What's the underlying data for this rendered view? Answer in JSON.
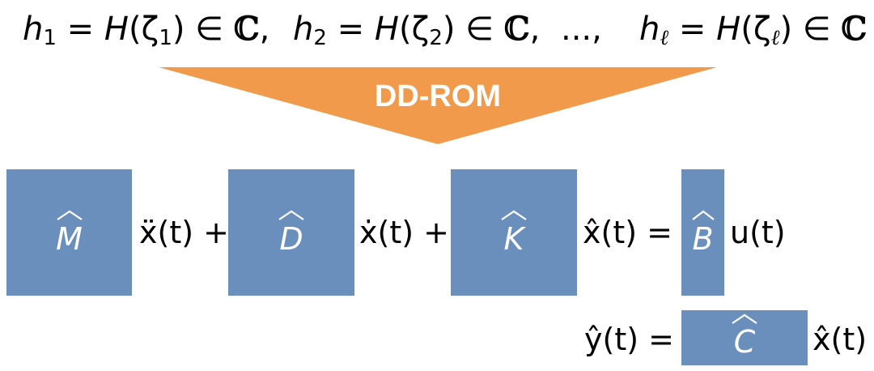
{
  "samples": [
    {
      "h": "h",
      "h_sub": "1",
      "op": " = ",
      "H": "H",
      "zeta": "(ζ",
      "z_sub": "1",
      "rest": ") ∈ ",
      "set": "ℂ",
      "sep": ","
    },
    {
      "h": "h",
      "h_sub": "2",
      "op": " = ",
      "H": "H",
      "zeta": "(ζ",
      "z_sub": "2",
      "rest": ") ∈ ",
      "set": "ℂ",
      "sep": ","
    },
    {
      "ellipsis": "...,"
    },
    {
      "h": "h",
      "h_sub": "ℓ",
      "op": " = ",
      "H": "H",
      "zeta": "(ζ",
      "z_sub": "ℓ",
      "rest": ") ∈ ",
      "set": "ℂ",
      "sep": ""
    }
  ],
  "arrow": {
    "label": "DD-ROM",
    "color": "#f19a4c"
  },
  "blocks": {
    "color": "#6a8fbd",
    "m": "M",
    "d": "D",
    "k": "K",
    "b": "B",
    "c": "C"
  },
  "equation1": {
    "term1": "ẍ(t) +",
    "term2": "ẋ(t) +",
    "term3": "x̂(t) =",
    "rhs": "u(t)"
  },
  "equation2": {
    "lhs": "ŷ(t) =",
    "rhs": "x̂(t)"
  }
}
